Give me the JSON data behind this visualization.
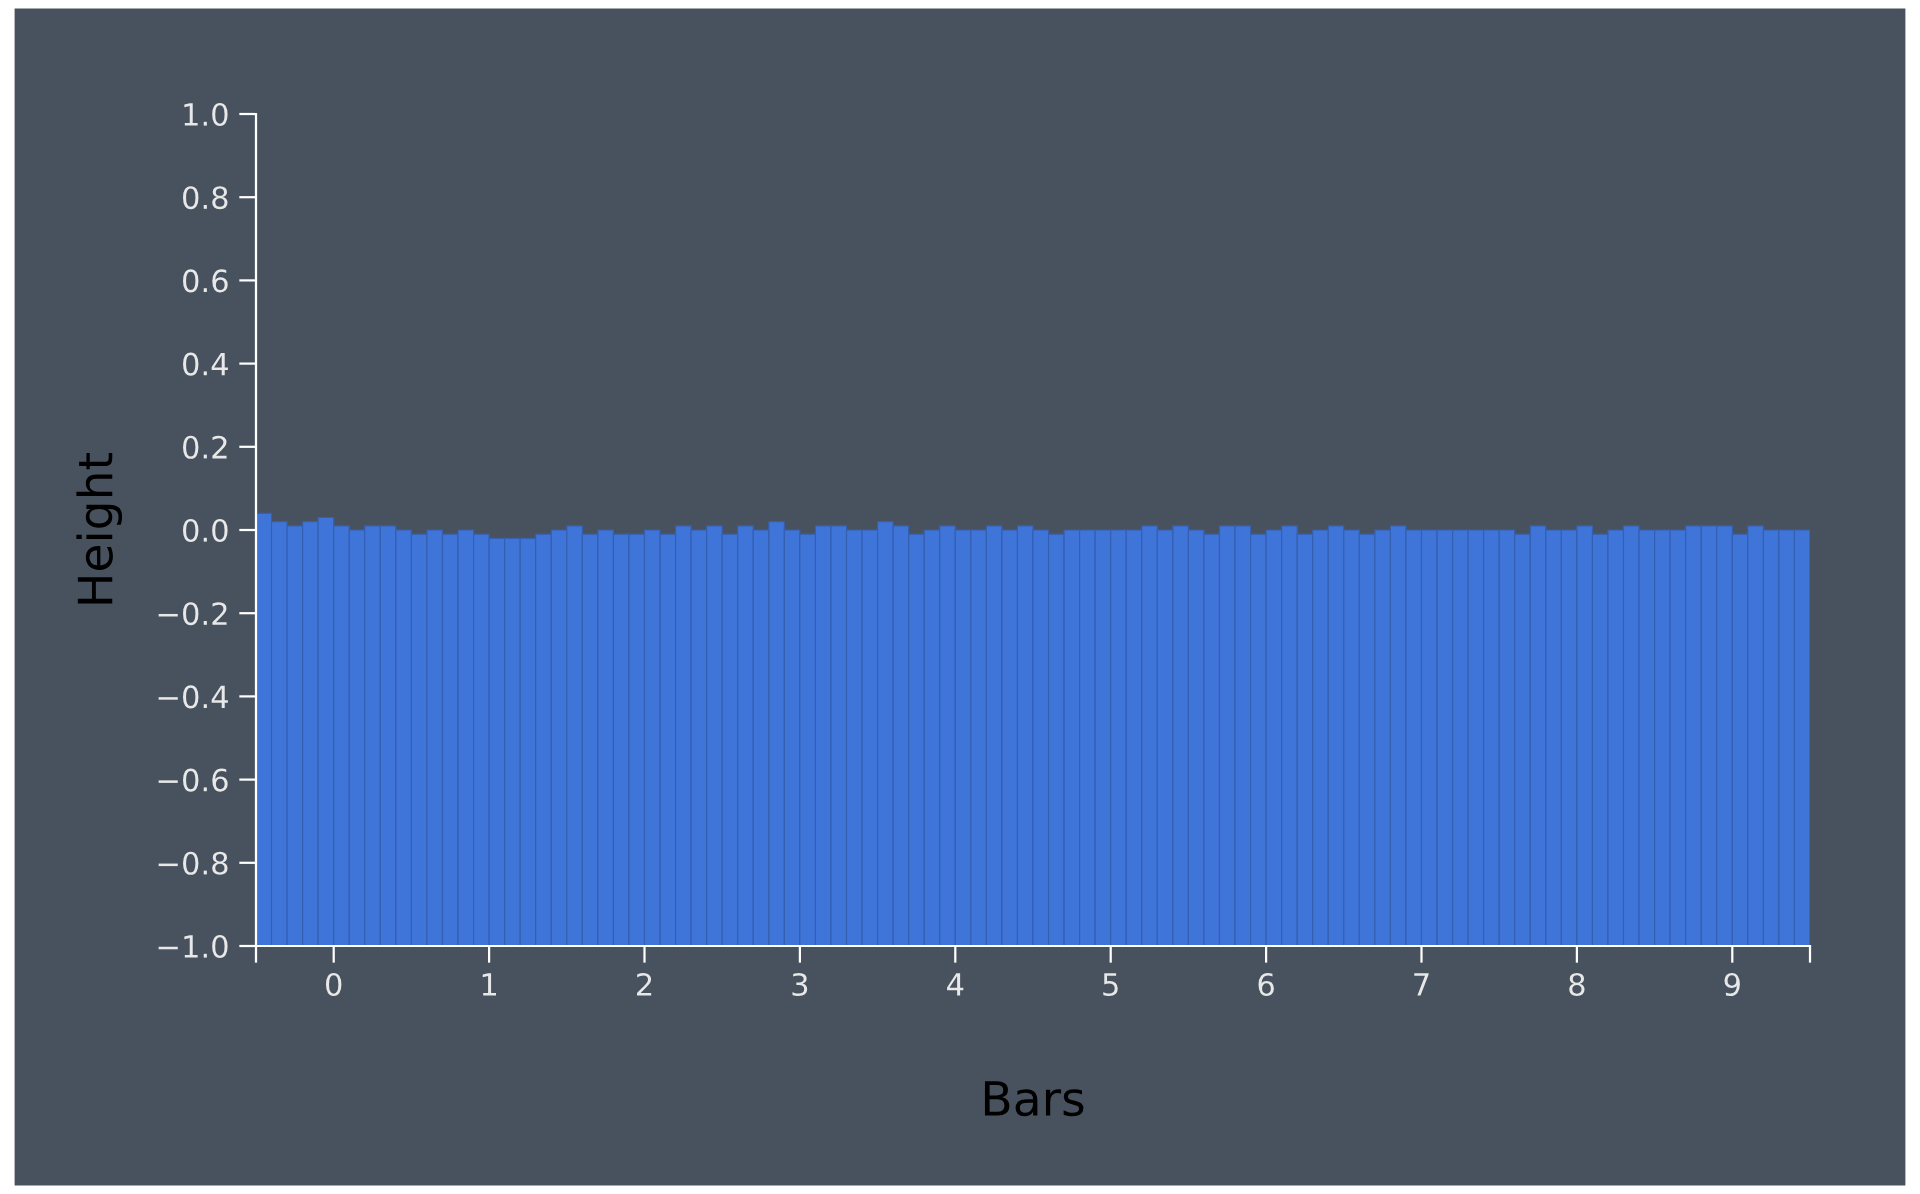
{
  "chart_data": {
    "type": "bar",
    "xlabel": "Bars",
    "ylabel": "Height",
    "x": [
      -0.45,
      -0.35,
      -0.25,
      -0.15,
      -0.05,
      0.05,
      0.15,
      0.25,
      0.35,
      0.45,
      0.55,
      0.65,
      0.75,
      0.85,
      0.95,
      1.05,
      1.15,
      1.25,
      1.35,
      1.45,
      1.55,
      1.65,
      1.75,
      1.85,
      1.95,
      2.05,
      2.15,
      2.25,
      2.35,
      2.45,
      2.55,
      2.65,
      2.75,
      2.85,
      2.95,
      3.05,
      3.15,
      3.25,
      3.35,
      3.45,
      3.55,
      3.65,
      3.75,
      3.85,
      3.95,
      4.05,
      4.15,
      4.25,
      4.35,
      4.45,
      4.55,
      4.65,
      4.75,
      4.85,
      4.95,
      5.05,
      5.15,
      5.25,
      5.35,
      5.45,
      5.55,
      5.65,
      5.75,
      5.85,
      5.95,
      6.05,
      6.15,
      6.25,
      6.35,
      6.45,
      6.55,
      6.65,
      6.75,
      6.85,
      6.95,
      7.05,
      7.15,
      7.25,
      7.35,
      7.45,
      7.55,
      7.65,
      7.75,
      7.85,
      7.95,
      8.05,
      8.15,
      8.25,
      8.35,
      8.45,
      8.55,
      8.65,
      8.75,
      8.85,
      8.95,
      9.05,
      9.15,
      9.25,
      9.35,
      9.45
    ],
    "values": [
      1.04,
      1.02,
      1.01,
      1.02,
      1.03,
      1.01,
      1.0,
      1.01,
      1.01,
      1.0,
      0.99,
      1.0,
      0.99,
      1.0,
      0.99,
      0.98,
      0.98,
      0.98,
      0.99,
      1.0,
      1.01,
      0.99,
      1.0,
      0.99,
      0.99,
      1.0,
      0.99,
      1.01,
      1.0,
      1.01,
      0.99,
      1.01,
      1.0,
      1.02,
      1.0,
      0.99,
      1.01,
      1.01,
      1.0,
      1.0,
      1.02,
      1.01,
      0.99,
      1.0,
      1.01,
      1.0,
      1.0,
      1.01,
      1.0,
      1.01,
      1.0,
      0.99,
      1.0,
      1.0,
      1.0,
      1.0,
      1.0,
      1.01,
      1.0,
      1.01,
      1.0,
      0.99,
      1.01,
      1.01,
      0.99,
      1.0,
      1.01,
      0.99,
      1.0,
      1.01,
      1.0,
      0.99,
      1.0,
      1.01,
      1.0,
      1.0,
      1.0,
      1.0,
      1.0,
      1.0,
      1.0,
      0.99,
      1.01,
      1.0,
      1.0,
      1.01,
      0.99,
      1.0,
      1.01,
      1.0,
      1.0,
      1.0,
      1.01,
      1.01,
      1.01,
      0.99,
      1.01,
      1.0,
      1.0,
      1.0
    ],
    "base": [
      -1.0,
      -1.0,
      -1.0,
      -1.0,
      -1.0,
      -1.0,
      -1.0,
      -1.0,
      -1.0,
      -1.0,
      -1.0,
      -1.0,
      -1.0,
      -1.0,
      -1.0,
      -1.0,
      -1.0,
      -1.0,
      -1.0,
      -1.0,
      -1.0,
      -1.0,
      -1.0,
      -1.0,
      -1.0,
      -1.0,
      -1.0,
      -1.0,
      -1.0,
      -1.0,
      -1.0,
      -1.0,
      -1.0,
      -1.0,
      -1.0,
      -1.0,
      -1.0,
      -1.0,
      -1.0,
      -1.0,
      -1.0,
      -1.0,
      -1.0,
      -1.0,
      -1.0,
      -1.0,
      -1.0,
      -1.0,
      -1.0,
      -1.0,
      -1.0,
      -1.0,
      -1.0,
      -1.0,
      -1.0,
      -1.0,
      -1.0,
      -1.0,
      -1.0,
      -1.0,
      -1.0,
      -1.0,
      -1.0,
      -1.0,
      -1.0,
      -1.0,
      -1.0,
      -1.0,
      -1.0,
      -1.0,
      -1.0,
      -1.0,
      -1.0,
      -1.0,
      -1.0,
      -1.0,
      -1.0,
      -1.0,
      -1.0,
      -1.0,
      -1.0,
      -1.0,
      -1.0,
      -1.0,
      -1.0,
      -1.0,
      -1.0,
      -1.0,
      -1.0,
      -1.0,
      -1.0,
      -1.0,
      -1.0,
      -1.0,
      -1.0,
      -1.0,
      -1.0,
      -1.0,
      -1.0,
      -1.0
    ],
    "color": "#3f74d9",
    "xlim": [
      -0.5,
      9.5
    ],
    "xticks": [
      {
        "value": -0.5,
        "label": null
      },
      0,
      1,
      2,
      3,
      4,
      5,
      6,
      7,
      8,
      9,
      {
        "value": 9.5,
        "label": null
      }
    ],
    "ylim": [
      -1.0,
      1.0
    ],
    "yticks": [
      {
        "value": -1.0,
        "label": "−1.0"
      },
      {
        "value": -0.8,
        "label": "−0.8"
      },
      {
        "value": -0.6,
        "label": "−0.6"
      },
      {
        "value": -0.4,
        "label": "−0.4"
      },
      {
        "value": -0.2,
        "label": "−0.2"
      },
      {
        "value": 0.0,
        "label": "0.0"
      },
      {
        "value": 0.2,
        "label": "0.2"
      },
      {
        "value": 0.4,
        "label": "0.4"
      },
      {
        "value": 0.6,
        "label": "0.6"
      },
      {
        "value": 0.8,
        "label": "0.8"
      },
      {
        "value": 1.0,
        "label": "1.0"
      }
    ]
  }
}
